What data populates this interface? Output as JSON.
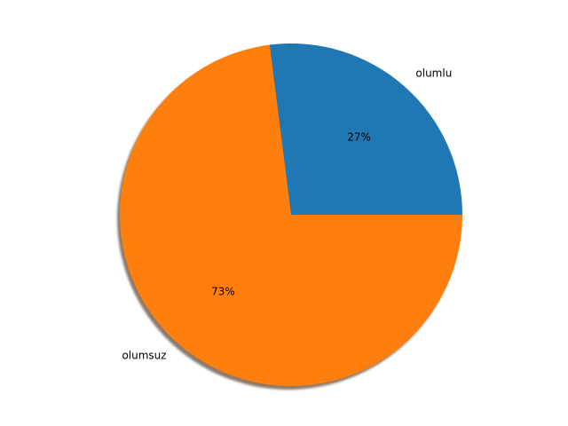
{
  "chart_data": {
    "type": "pie",
    "title": "",
    "categories": [
      "olumlu",
      "olumsuz"
    ],
    "values": [
      27,
      73
    ],
    "percent_labels": [
      "27%",
      "73%"
    ],
    "colors": [
      "#1f77b4",
      "#ff7f0e"
    ],
    "shadow": true,
    "start_angle_deg": 0,
    "direction": "counterclockwise",
    "legend": "none"
  }
}
